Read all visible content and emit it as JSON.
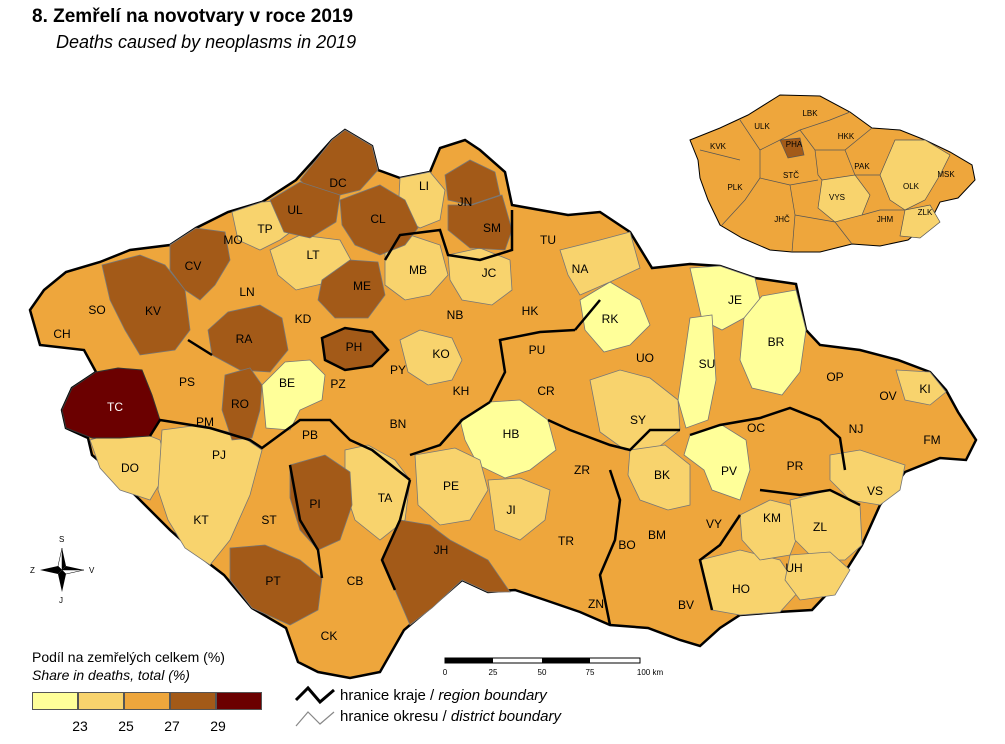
{
  "title": "8. Zemřelí na novotvary v roce 2019",
  "subtitle": "Deaths caused by neoplasms in 2019",
  "colors": {
    "c1": "#ffff99",
    "c2": "#f8d36d",
    "c3": "#eea63c",
    "c4": "#a35a18",
    "c5": "#6b0000",
    "border": "#000000",
    "district": "#7a7a7a"
  },
  "districts": [
    {
      "code": "TC",
      "cls": 5
    },
    {
      "code": "CV",
      "cls": 4
    },
    {
      "code": "KV",
      "cls": 4
    },
    {
      "code": "DC",
      "cls": 4
    },
    {
      "code": "UL",
      "cls": 4
    },
    {
      "code": "CL",
      "cls": 4
    },
    {
      "code": "JN",
      "cls": 4
    },
    {
      "code": "SM",
      "cls": 4
    },
    {
      "code": "ME",
      "cls": 4
    },
    {
      "code": "RA",
      "cls": 4
    },
    {
      "code": "PH",
      "cls": 4
    },
    {
      "code": "RO",
      "cls": 4
    },
    {
      "code": "PI",
      "cls": 4
    },
    {
      "code": "PT",
      "cls": 4
    },
    {
      "code": "JH",
      "cls": 4
    },
    {
      "code": "SO",
      "cls": 3
    },
    {
      "code": "CH",
      "cls": 3
    },
    {
      "code": "LN",
      "cls": 3
    },
    {
      "code": "MO",
      "cls": 3
    },
    {
      "code": "TP",
      "cls": 2
    },
    {
      "code": "LT",
      "cls": 2
    },
    {
      "code": "KD",
      "cls": 3
    },
    {
      "code": "LI",
      "cls": 2
    },
    {
      "code": "TU",
      "cls": 3
    },
    {
      "code": "NA",
      "cls": 2
    },
    {
      "code": "JC",
      "cls": 2
    },
    {
      "code": "MB",
      "cls": 2
    },
    {
      "code": "NB",
      "cls": 3
    },
    {
      "code": "HK",
      "cls": 3
    },
    {
      "code": "RK",
      "cls": 1
    },
    {
      "code": "KO",
      "cls": 2
    },
    {
      "code": "PY",
      "cls": 3
    },
    {
      "code": "PZ",
      "cls": 3
    },
    {
      "code": "BE",
      "cls": 1
    },
    {
      "code": "PS",
      "cls": 3
    },
    {
      "code": "PM",
      "cls": 3
    },
    {
      "code": "PJ",
      "cls": 2
    },
    {
      "code": "DO",
      "cls": 2
    },
    {
      "code": "KT",
      "cls": 2
    },
    {
      "code": "PB",
      "cls": 3
    },
    {
      "code": "BN",
      "cls": 3
    },
    {
      "code": "KH",
      "cls": 3
    },
    {
      "code": "PU",
      "cls": 3
    },
    {
      "code": "CR",
      "cls": 3
    },
    {
      "code": "UO",
      "cls": 3
    },
    {
      "code": "SY",
      "cls": 2
    },
    {
      "code": "HB",
      "cls": 1
    },
    {
      "code": "JE",
      "cls": 1
    },
    {
      "code": "SU",
      "cls": 1
    },
    {
      "code": "BR",
      "cls": 1
    },
    {
      "code": "OP",
      "cls": 3
    },
    {
      "code": "OV",
      "cls": 3
    },
    {
      "code": "KI",
      "cls": 2
    },
    {
      "code": "NJ",
      "cls": 3
    },
    {
      "code": "FM",
      "cls": 3
    },
    {
      "code": "OC",
      "cls": 3
    },
    {
      "code": "PR",
      "cls": 3
    },
    {
      "code": "PV",
      "cls": 1
    },
    {
      "code": "KM",
      "cls": 2
    },
    {
      "code": "ZL",
      "cls": 2
    },
    {
      "code": "VS",
      "cls": 2
    },
    {
      "code": "UH",
      "cls": 2
    },
    {
      "code": "HO",
      "cls": 2
    },
    {
      "code": "BV",
      "cls": 3
    },
    {
      "code": "VY",
      "cls": 3
    },
    {
      "code": "BK",
      "cls": 2
    },
    {
      "code": "BM",
      "cls": 3
    },
    {
      "code": "BO",
      "cls": 3
    },
    {
      "code": "ZR",
      "cls": 3
    },
    {
      "code": "TR",
      "cls": 3
    },
    {
      "code": "JI",
      "cls": 2
    },
    {
      "code": "PE",
      "cls": 2
    },
    {
      "code": "ZN",
      "cls": 3
    },
    {
      "code": "TA",
      "cls": 2
    },
    {
      "code": "ST",
      "cls": 3
    },
    {
      "code": "CB",
      "cls": 3
    },
    {
      "code": "CK",
      "cls": 3
    }
  ],
  "regions_inset": [
    {
      "code": "LBK",
      "cls": 3
    },
    {
      "code": "ULK",
      "cls": 3
    },
    {
      "code": "HKK",
      "cls": 3
    },
    {
      "code": "KVK",
      "cls": 3
    },
    {
      "code": "PHA",
      "cls": 4
    },
    {
      "code": "PAK",
      "cls": 3
    },
    {
      "code": "STČ",
      "cls": 3
    },
    {
      "code": "OLK",
      "cls": 2
    },
    {
      "code": "MSK",
      "cls": 3
    },
    {
      "code": "PLK",
      "cls": 3
    },
    {
      "code": "VYS",
      "cls": 2
    },
    {
      "code": "JHČ",
      "cls": 3
    },
    {
      "code": "JHM",
      "cls": 3
    },
    {
      "code": "ZLK",
      "cls": 2
    }
  ],
  "legend": {
    "title": "Podíl na zemřelých celkem (%)",
    "subtitle": "Share in deaths, total (%)",
    "ticks": [
      "23",
      "25",
      "27",
      "29"
    ]
  },
  "boundaries": {
    "region_cs": "hranice kraje /",
    "region_en": "region boundary",
    "district_cs": "hranice okresu /",
    "district_en": "district boundary"
  },
  "scale": {
    "ticks": [
      "0",
      "25",
      "50",
      "75",
      "100 km"
    ]
  },
  "compass": {
    "n": "S",
    "s": "J",
    "w": "Z",
    "e": "V"
  }
}
